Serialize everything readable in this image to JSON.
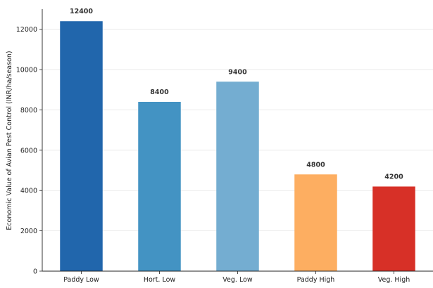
{
  "chart_data": {
    "type": "bar",
    "categories": [
      "Paddy Low",
      "Hort. Low",
      "Veg. Low",
      "Paddy High",
      "Veg. High"
    ],
    "values": [
      12400,
      8400,
      9400,
      4800,
      4200
    ],
    "colors": [
      "#2166ac",
      "#4393c3",
      "#74add1",
      "#fdae61",
      "#d73027"
    ],
    "data_labels": [
      "12400",
      "8400",
      "9400",
      "4800",
      "4200"
    ],
    "title": "",
    "xlabel": "",
    "ylabel": "Economic Value of Avian Pest Control (INR/ha/season)",
    "ylim": [
      0,
      13000
    ],
    "yticks": [
      0,
      2000,
      4000,
      6000,
      8000,
      10000,
      12000
    ],
    "grid": "horizontal",
    "legend": "none"
  }
}
